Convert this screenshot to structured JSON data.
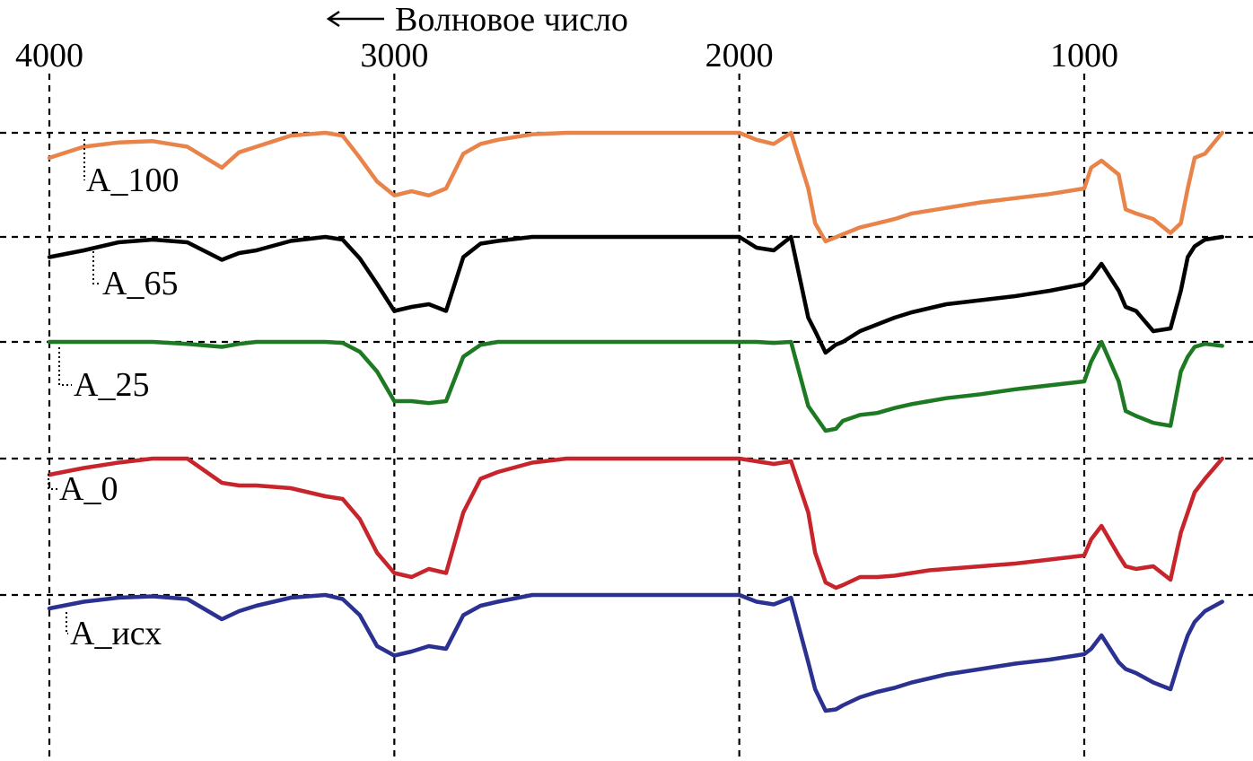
{
  "chart_data": {
    "type": "line",
    "title": "",
    "xlabel": "← Волновое число",
    "ylabel": "",
    "x_ticks": [
      "4000",
      "3000",
      "2000",
      "1000"
    ],
    "xlim": [
      4000,
      600
    ],
    "x_reversed": true,
    "grid": true,
    "x": [
      4000,
      3900,
      3800,
      3700,
      3600,
      3500,
      3450,
      3400,
      3300,
      3200,
      3150,
      3100,
      3050,
      3000,
      2950,
      2900,
      2850,
      2800,
      2750,
      2700,
      2600,
      2500,
      2400,
      2300,
      2200,
      2100,
      2000,
      1950,
      1900,
      1850,
      1800,
      1780,
      1750,
      1720,
      1700,
      1650,
      1600,
      1550,
      1500,
      1450,
      1400,
      1300,
      1200,
      1100,
      1000,
      980,
      950,
      900,
      880,
      850,
      800,
      750,
      720,
      700,
      680,
      650,
      600
    ],
    "series": [
      {
        "name": "A_100",
        "color": "#E8844A",
        "values": [
          0.82,
          0.9,
          0.93,
          0.94,
          0.9,
          0.75,
          0.86,
          0.9,
          0.98,
          1.0,
          0.98,
          0.82,
          0.65,
          0.55,
          0.58,
          0.55,
          0.6,
          0.85,
          0.92,
          0.95,
          0.99,
          1.0,
          1.0,
          1.0,
          1.0,
          1.0,
          1.0,
          0.95,
          0.92,
          1.0,
          0.6,
          0.35,
          0.22,
          0.25,
          0.27,
          0.32,
          0.35,
          0.38,
          0.42,
          0.44,
          0.46,
          0.5,
          0.53,
          0.56,
          0.6,
          0.75,
          0.8,
          0.7,
          0.45,
          0.42,
          0.38,
          0.28,
          0.35,
          0.6,
          0.82,
          0.85,
          1.0
        ]
      },
      {
        "name": "A_65",
        "color": "#000000",
        "values": [
          0.85,
          0.9,
          0.96,
          0.98,
          0.96,
          0.83,
          0.88,
          0.9,
          0.97,
          1.0,
          0.98,
          0.84,
          0.65,
          0.45,
          0.48,
          0.5,
          0.45,
          0.85,
          0.95,
          0.97,
          1.0,
          1.0,
          1.0,
          1.0,
          1.0,
          1.0,
          1.0,
          0.92,
          0.9,
          1.0,
          0.4,
          0.3,
          0.14,
          0.2,
          0.22,
          0.3,
          0.35,
          0.4,
          0.44,
          0.47,
          0.5,
          0.53,
          0.56,
          0.6,
          0.65,
          0.7,
          0.8,
          0.6,
          0.48,
          0.45,
          0.3,
          0.32,
          0.6,
          0.85,
          0.93,
          0.98,
          1.0
        ]
      },
      {
        "name": "A_25",
        "color": "#1D7A22",
        "values": [
          1.0,
          1.0,
          1.0,
          1.0,
          0.98,
          0.95,
          0.98,
          1.0,
          1.0,
          1.0,
          0.99,
          0.9,
          0.7,
          0.4,
          0.4,
          0.38,
          0.4,
          0.85,
          0.97,
          1.0,
          1.0,
          1.0,
          1.0,
          1.0,
          1.0,
          1.0,
          1.0,
          1.0,
          0.99,
          1.0,
          0.35,
          0.25,
          0.1,
          0.12,
          0.2,
          0.26,
          0.28,
          0.33,
          0.37,
          0.4,
          0.43,
          0.47,
          0.52,
          0.56,
          0.6,
          0.8,
          1.0,
          0.6,
          0.3,
          0.25,
          0.18,
          0.15,
          0.7,
          0.85,
          0.95,
          0.98,
          0.96
        ]
      },
      {
        "name": "A_0",
        "color": "#C8242B",
        "values": [
          0.88,
          0.93,
          0.97,
          1.0,
          1.0,
          0.82,
          0.8,
          0.8,
          0.78,
          0.72,
          0.7,
          0.55,
          0.3,
          0.15,
          0.12,
          0.18,
          0.15,
          0.6,
          0.85,
          0.9,
          0.97,
          1.0,
          1.0,
          1.0,
          1.0,
          1.0,
          1.0,
          0.98,
          0.96,
          0.98,
          0.6,
          0.3,
          0.08,
          0.04,
          0.06,
          0.12,
          0.12,
          0.13,
          0.15,
          0.17,
          0.18,
          0.2,
          0.22,
          0.25,
          0.28,
          0.4,
          0.5,
          0.28,
          0.2,
          0.18,
          0.2,
          0.1,
          0.45,
          0.6,
          0.75,
          0.85,
          1.0
        ]
      },
      {
        "name": "A_исх",
        "color": "#2B3191",
        "values": [
          0.9,
          0.95,
          0.98,
          0.99,
          0.97,
          0.82,
          0.88,
          0.92,
          0.98,
          1.0,
          0.97,
          0.85,
          0.62,
          0.55,
          0.58,
          0.62,
          0.6,
          0.85,
          0.92,
          0.95,
          1.0,
          1.0,
          1.0,
          1.0,
          1.0,
          1.0,
          1.0,
          0.95,
          0.93,
          0.98,
          0.5,
          0.3,
          0.14,
          0.15,
          0.18,
          0.24,
          0.28,
          0.31,
          0.35,
          0.38,
          0.41,
          0.45,
          0.49,
          0.52,
          0.56,
          0.6,
          0.7,
          0.5,
          0.45,
          0.42,
          0.35,
          0.3,
          0.55,
          0.7,
          0.8,
          0.88,
          0.95
        ]
      }
    ]
  }
}
